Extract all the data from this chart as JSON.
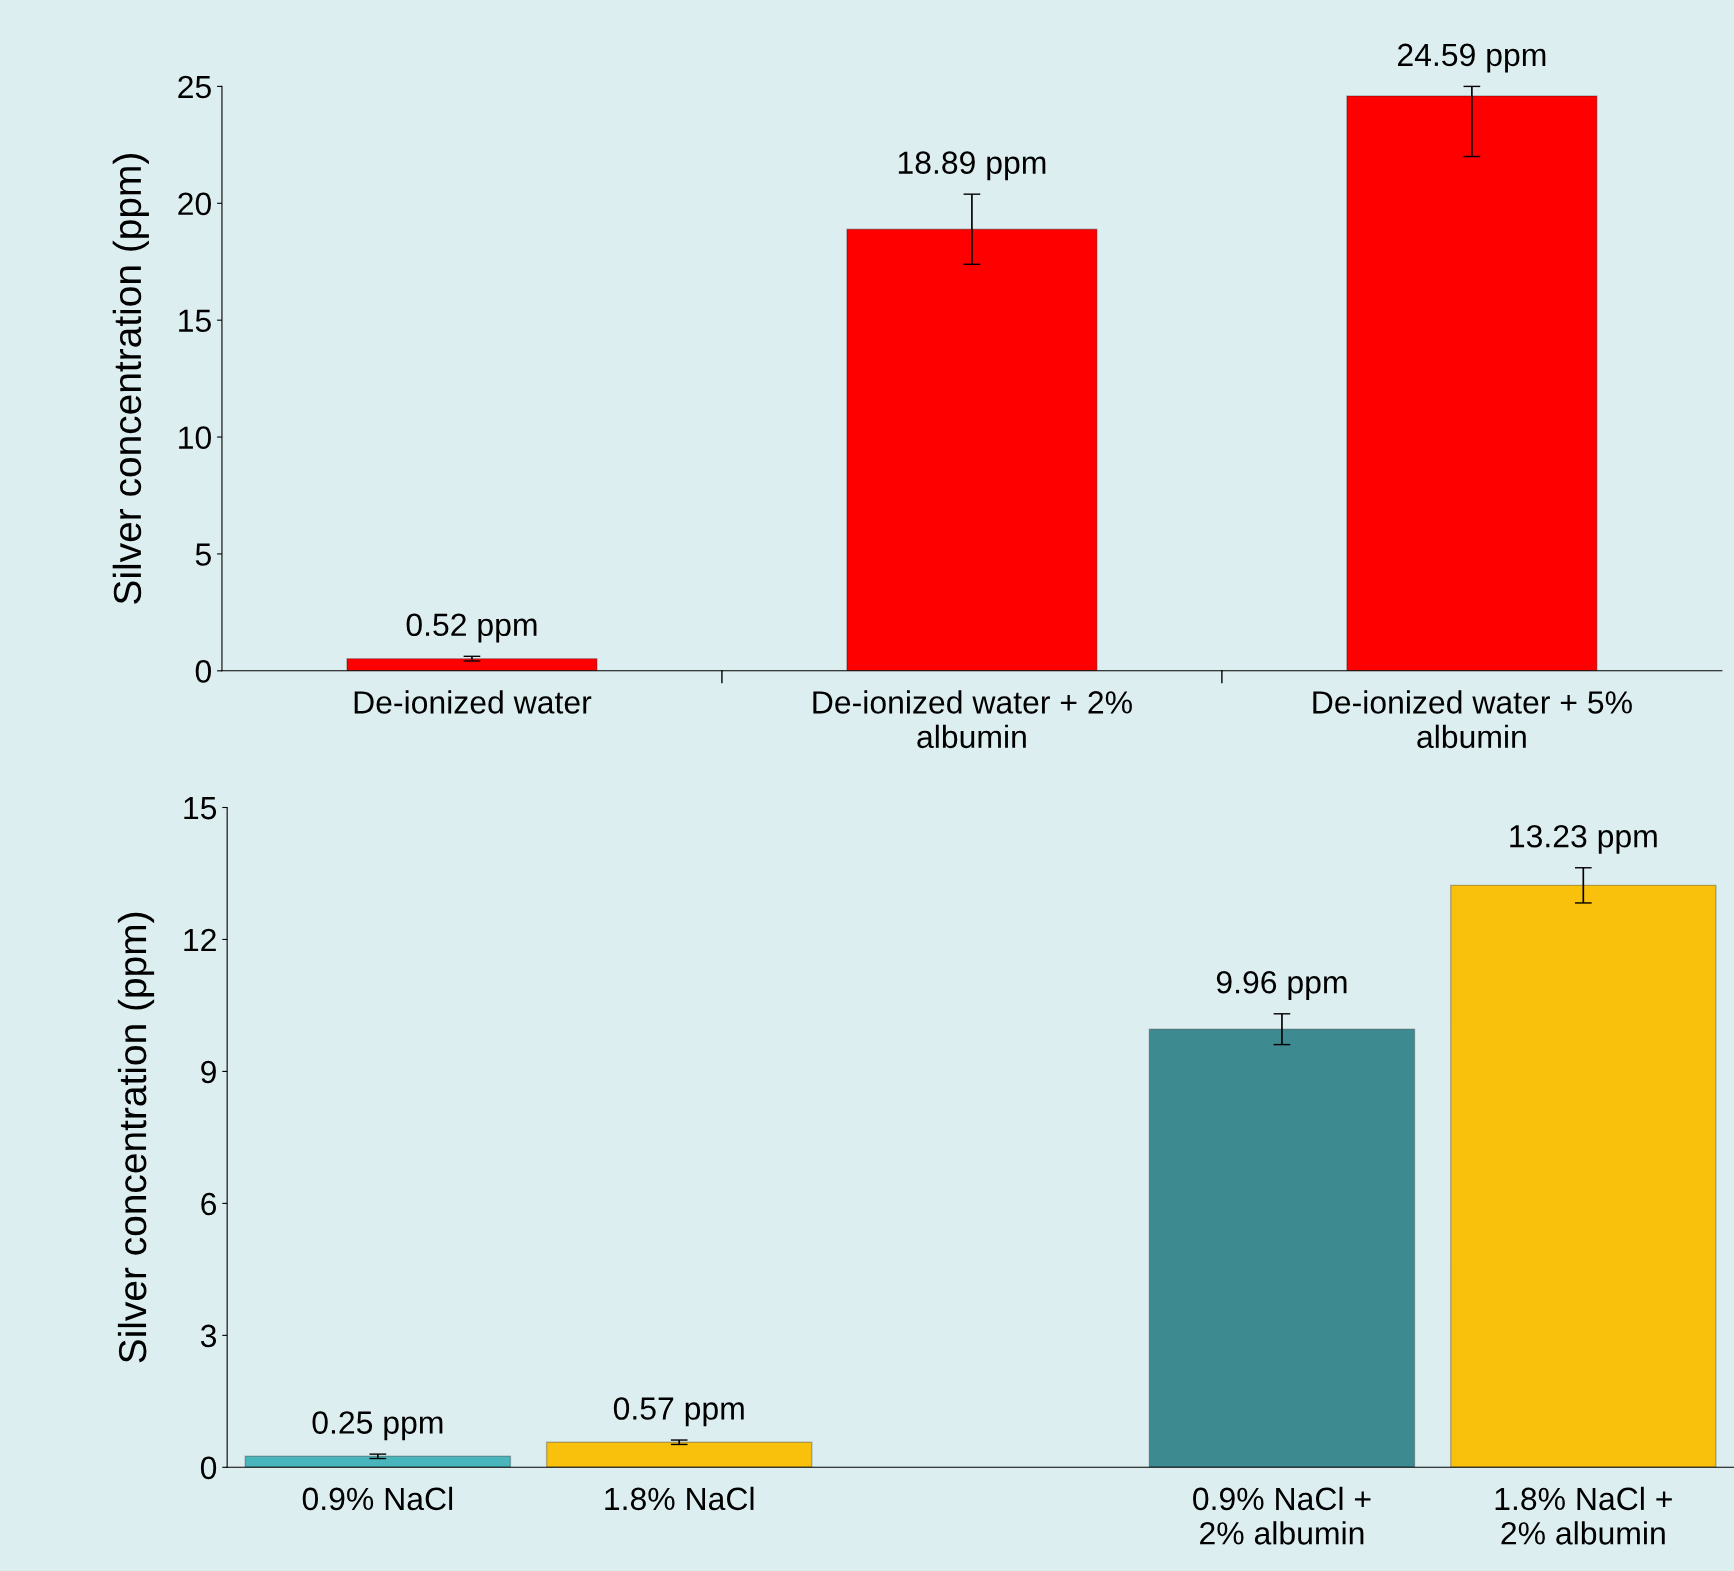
{
  "chart_data": [
    {
      "type": "bar",
      "ylabel": "Silver concentration (ppm)",
      "categories": [
        "De-ionized water",
        "De-ionized water + 2%\nalbumin",
        "De-ionized water + 5%\nalbumin"
      ],
      "values": [
        0.52,
        18.89,
        24.59
      ],
      "colors": [
        "#ff0000",
        "#ff0000",
        "#ff0000"
      ],
      "errors": [
        0.1,
        1.5,
        [
          22,
          25
        ]
      ],
      "value_labels": [
        "0.52 ppm",
        "18.89 ppm",
        "24.59 ppm"
      ],
      "ylim": [
        0,
        25
      ],
      "yticks": [
        0,
        5,
        10,
        15,
        20,
        25
      ],
      "grid": false
    },
    {
      "type": "bar",
      "ylabel": "Silver concentration (ppm)",
      "categories": [
        "0.9% NaCl",
        "1.8% NaCl",
        null,
        "0.9% NaCl +\n2% albumin",
        "1.8% NaCl +\n2% albumin"
      ],
      "values": [
        0.25,
        0.57,
        null,
        9.96,
        13.23
      ],
      "colors": [
        "#49b5bd",
        "#f9c00c",
        "#ffffff",
        "#3d8b91",
        "#f9c00c"
      ],
      "errors": [
        0.05,
        0.05,
        null,
        0.35,
        0.4
      ],
      "value_labels": [
        "0.25 ppm",
        "0.57 ppm",
        null,
        "9.96 ppm",
        "13.23 ppm"
      ],
      "ylim": [
        0,
        15
      ],
      "yticks": [
        0,
        3,
        6,
        9,
        12,
        15
      ],
      "grid": false
    }
  ]
}
